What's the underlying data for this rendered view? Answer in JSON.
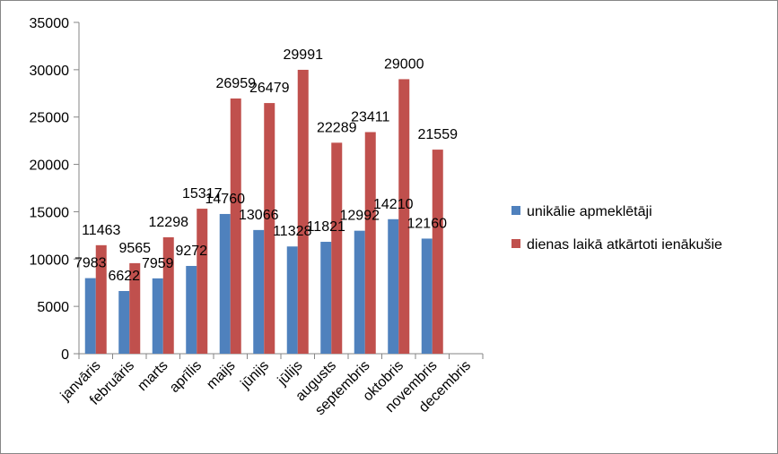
{
  "chart_data": {
    "type": "bar",
    "title": "",
    "xlabel": "",
    "ylabel": "",
    "ylim": [
      0,
      35000
    ],
    "yticks": [
      0,
      5000,
      10000,
      15000,
      20000,
      25000,
      30000,
      35000
    ],
    "grid": false,
    "legend_position": "right",
    "data_labels": true,
    "categories": [
      "janvāris",
      "februāris",
      "marts",
      "aprīlis",
      "maijs",
      "jūnijs",
      "jūlijs",
      "augusts",
      "septembris",
      "oktobris",
      "novembris",
      "decembris"
    ],
    "series": [
      {
        "name": "unikālie apmeklētāji",
        "color": "#4f81bd",
        "values": [
          7983,
          6622,
          7959,
          9272,
          14760,
          13066,
          11328,
          11821,
          12992,
          14210,
          12160,
          null
        ]
      },
      {
        "name": "dienas laikā atkārtoti ienākušie",
        "color": "#c0504d",
        "values": [
          11463,
          9565,
          12298,
          15317,
          26959,
          26479,
          29991,
          22289,
          23411,
          29000,
          21559,
          null
        ]
      }
    ]
  }
}
